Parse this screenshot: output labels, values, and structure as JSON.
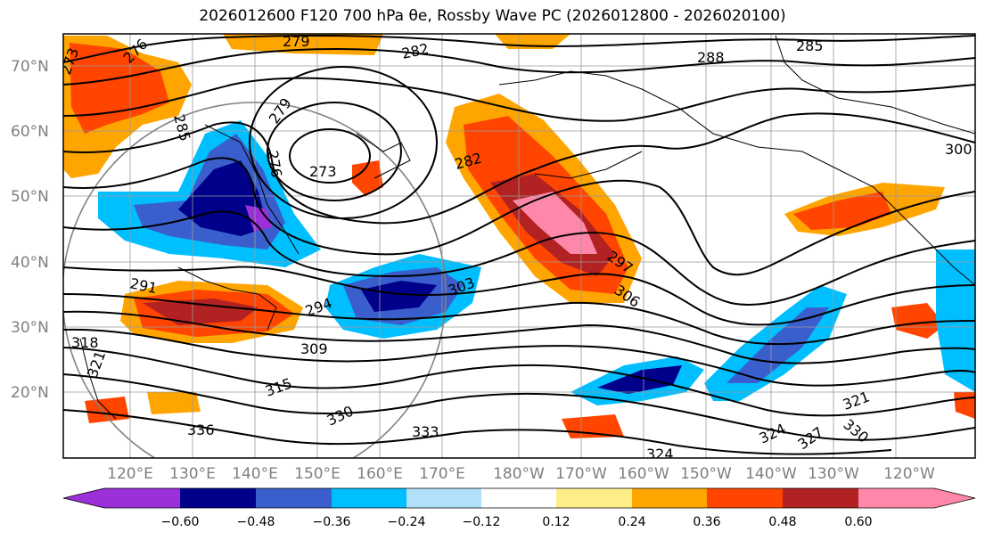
{
  "title": "2026012600 F120 700 hPa θe, Rossby Wave PC (2026012800 - 2026020100)",
  "map": {
    "lat_labels": [
      "70°N",
      "60°N",
      "50°N",
      "40°N",
      "30°N",
      "20°N"
    ],
    "lon_labels": [
      "120°E",
      "130°E",
      "140°E",
      "150°E",
      "160°E",
      "170°E",
      "180°W",
      "170°W",
      "160°W",
      "150°W",
      "140°W",
      "130°W",
      "120°W"
    ],
    "contour_labels": [
      {
        "text": "273"
      },
      {
        "text": "276"
      },
      {
        "text": "279"
      },
      {
        "text": "285"
      },
      {
        "text": "273"
      },
      {
        "text": "276"
      },
      {
        "text": "279"
      },
      {
        "text": "282"
      },
      {
        "text": "285"
      },
      {
        "text": "288"
      },
      {
        "text": "300"
      },
      {
        "text": "282"
      },
      {
        "text": "297"
      },
      {
        "text": "306"
      },
      {
        "text": "303"
      },
      {
        "text": "294"
      },
      {
        "text": "291"
      },
      {
        "text": "309"
      },
      {
        "text": "318"
      },
      {
        "text": "321"
      },
      {
        "text": "315"
      },
      {
        "text": "330"
      },
      {
        "text": "336"
      },
      {
        "text": "333"
      },
      {
        "text": "324"
      },
      {
        "text": "327"
      },
      {
        "text": "321"
      },
      {
        "text": "330"
      },
      {
        "text": "324"
      }
    ]
  },
  "colorbar": {
    "colors": [
      "#9b30d9",
      "#00008b",
      "#3a5fcd",
      "#00bfff",
      "#b0e0fa",
      "#ffffff",
      "#ffee88",
      "#ffa500",
      "#ff4500",
      "#b22222",
      "#ff88aa"
    ],
    "tick_labels": [
      "−0.60",
      "−0.48",
      "−0.36",
      "−0.24",
      "−0.12",
      "0.12",
      "0.24",
      "0.36",
      "0.48",
      "0.60"
    ]
  }
}
